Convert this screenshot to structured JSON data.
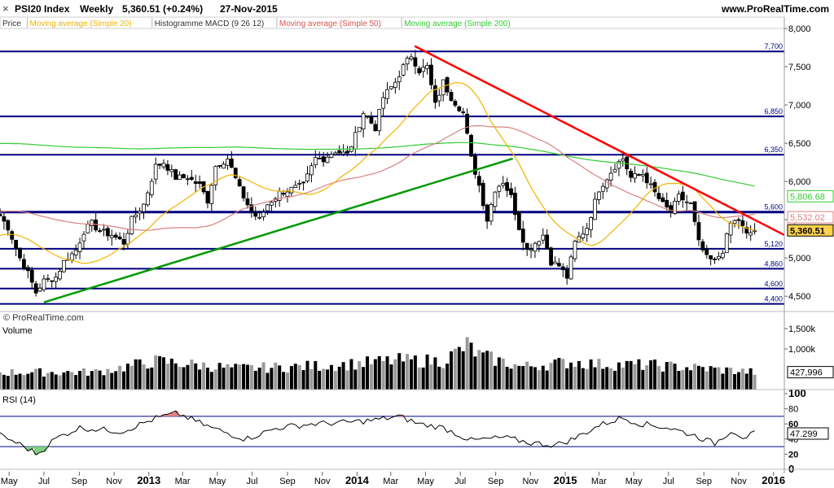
{
  "header": {
    "title": "PSI20 Index",
    "period": "Weekly",
    "last": "5,360.51 (+0.24%)",
    "date": "27-Nov-2015",
    "site": "www.ProRealTime.com",
    "copyright": "© ProRealTime.com",
    "close_icon": "close-icon"
  },
  "legend": [
    {
      "label": "Price",
      "color": "#333333"
    },
    {
      "label": "Moving average (Simple 20)",
      "color": "#f0b400"
    },
    {
      "label": "Histogramme MACD (9 26 12)",
      "color": "#333333"
    },
    {
      "label": "Moving average (Simple 50)",
      "color": "#d9534f"
    },
    {
      "label": "Moving average (Simple 200)",
      "color": "#33cc33"
    }
  ],
  "colors": {
    "sma20": "#f0b400",
    "sma50": "#d98080",
    "sma200": "#33cc33",
    "resistance_trend": "#ff0000",
    "support_trend": "#009900",
    "levels": "#000080",
    "candle_up": "#ffffff",
    "candle_down": "#000000"
  },
  "chart_data": [
    {
      "type": "candlestick",
      "title": "PSI20 Index",
      "y_ticks": [
        "8,000",
        "7,500",
        "7,000",
        "6,500",
        "6,000",
        "5,500",
        "5,000",
        "4,500"
      ],
      "ylim": [
        4300,
        8000
      ],
      "x_ticks": [
        "May",
        "Jul",
        "Sep",
        "Nov",
        "2013",
        "Mar",
        "May",
        "Jul",
        "Sep",
        "Nov",
        "2014",
        "Mar",
        "May",
        "Jul",
        "Sep",
        "Nov",
        "2015",
        "Mar",
        "May",
        "Jul",
        "Sep",
        "Nov",
        "2016"
      ],
      "xlim": [
        "2012-04-15",
        "2016-01-20"
      ],
      "horizontal_levels": [
        {
          "value": 7700,
          "label": "7,700"
        },
        {
          "value": 6850,
          "label": "6,850"
        },
        {
          "value": 6350,
          "label": "6,350"
        },
        {
          "value": 5600,
          "label": "5,600"
        },
        {
          "value": 5120,
          "label": "5,120"
        },
        {
          "value": 4860,
          "label": "4,860"
        },
        {
          "value": 4600,
          "label": "4,600"
        },
        {
          "value": 4400,
          "label": "4,400"
        }
      ],
      "trend_lines": [
        {
          "name": "resistance",
          "points": [
            [
              "2014-04-12",
              7770
            ],
            [
              "2016-01-20",
              5300
            ]
          ]
        },
        {
          "name": "support",
          "points": [
            [
              "2012-07-01",
              4420
            ],
            [
              "2014-10-01",
              6300
            ]
          ]
        }
      ],
      "value_labels": [
        {
          "series": "Moving average (Simple 200)",
          "value": "5,806.68"
        },
        {
          "series": "Moving average (Simple 50)",
          "value": "5,532.02"
        },
        {
          "series": "Price",
          "value": "5,360.51"
        }
      ],
      "close_anchors": [
        [
          "2012-04-15",
          5550
        ],
        [
          "2012-04-29",
          5400
        ],
        [
          "2012-05-20",
          5000
        ],
        [
          "2012-06-03",
          4800
        ],
        [
          "2012-06-17",
          4550
        ],
        [
          "2012-07-01",
          4700
        ],
        [
          "2012-07-22",
          4750
        ],
        [
          "2012-08-05",
          4950
        ],
        [
          "2012-08-26",
          5100
        ],
        [
          "2012-09-09",
          5350
        ],
        [
          "2012-09-23",
          5450
        ],
        [
          "2012-10-07",
          5350
        ],
        [
          "2012-10-28",
          5300
        ],
        [
          "2012-11-18",
          5200
        ],
        [
          "2012-12-02",
          5500
        ],
        [
          "2012-12-23",
          5700
        ],
        [
          "2013-01-13",
          6200
        ],
        [
          "2013-01-27",
          6250
        ],
        [
          "2013-02-17",
          6050
        ],
        [
          "2013-03-10",
          6050
        ],
        [
          "2013-03-31",
          5950
        ],
        [
          "2013-04-14",
          5750
        ],
        [
          "2013-04-28",
          6200
        ],
        [
          "2013-05-19",
          6300
        ],
        [
          "2013-06-09",
          5900
        ],
        [
          "2013-06-30",
          5600
        ],
        [
          "2013-07-14",
          5500
        ],
        [
          "2013-07-28",
          5700
        ],
        [
          "2013-08-18",
          5850
        ],
        [
          "2013-09-08",
          5900
        ],
        [
          "2013-09-29",
          5950
        ],
        [
          "2013-10-20",
          6300
        ],
        [
          "2013-11-03",
          6300
        ],
        [
          "2013-11-24",
          6400
        ],
        [
          "2013-12-15",
          6350
        ],
        [
          "2013-12-29",
          6600
        ],
        [
          "2014-01-12",
          6900
        ],
        [
          "2014-02-02",
          6700
        ],
        [
          "2014-02-16",
          7100
        ],
        [
          "2014-03-09",
          7300
        ],
        [
          "2014-03-23",
          7500
        ],
        [
          "2014-04-06",
          7650
        ],
        [
          "2014-04-20",
          7450
        ],
        [
          "2014-05-04",
          7500
        ],
        [
          "2014-05-18",
          7000
        ],
        [
          "2014-06-01",
          7300
        ],
        [
          "2014-06-15",
          7100
        ],
        [
          "2014-07-06",
          6900
        ],
        [
          "2014-07-20",
          6300
        ],
        [
          "2014-08-03",
          5950
        ],
        [
          "2014-08-17",
          5500
        ],
        [
          "2014-08-31",
          5900
        ],
        [
          "2014-09-14",
          6000
        ],
        [
          "2014-09-28",
          5800
        ],
        [
          "2014-10-12",
          5400
        ],
        [
          "2014-10-26",
          5100
        ],
        [
          "2014-11-09",
          5200
        ],
        [
          "2014-11-23",
          5300
        ],
        [
          "2014-12-07",
          4950
        ],
        [
          "2014-12-21",
          4900
        ],
        [
          "2015-01-04",
          4750
        ],
        [
          "2015-01-18",
          5200
        ],
        [
          "2015-02-08",
          5400
        ],
        [
          "2015-03-01",
          5900
        ],
        [
          "2015-03-15",
          6050
        ],
        [
          "2015-03-29",
          6200
        ],
        [
          "2015-04-12",
          6300
        ],
        [
          "2015-04-26",
          6050
        ],
        [
          "2015-05-17",
          6100
        ],
        [
          "2015-06-07",
          5850
        ],
        [
          "2015-06-21",
          5700
        ],
        [
          "2015-07-05",
          5600
        ],
        [
          "2015-07-19",
          5800
        ],
        [
          "2015-08-09",
          5700
        ],
        [
          "2015-08-23",
          5200
        ],
        [
          "2015-09-06",
          5000
        ],
        [
          "2015-09-20",
          4950
        ],
        [
          "2015-10-04",
          5100
        ],
        [
          "2015-10-18",
          5450
        ],
        [
          "2015-11-01",
          5500
        ],
        [
          "2015-11-15",
          5300
        ],
        [
          "2015-11-29",
          5360.51
        ]
      ]
    },
    {
      "type": "bar",
      "title": "Volume",
      "y_ticks": [
        "1,500k",
        "1,000k"
      ],
      "ylim": [
        0,
        1600000
      ],
      "last_value": "427,996",
      "volume_anchors": [
        [
          "2012-04-15",
          420000
        ],
        [
          "2012-10-01",
          430000
        ],
        [
          "2013-01-15",
          700000
        ],
        [
          "2013-06-01",
          520000
        ],
        [
          "2013-09-15",
          560000
        ],
        [
          "2013-12-15",
          620000
        ],
        [
          "2014-03-15",
          720000
        ],
        [
          "2014-06-01",
          700000
        ],
        [
          "2014-07-15",
          1100000
        ],
        [
          "2014-08-01",
          850000
        ],
        [
          "2014-10-15",
          560000
        ],
        [
          "2015-01-15",
          680000
        ],
        [
          "2015-03-01",
          620000
        ],
        [
          "2015-06-01",
          600000
        ],
        [
          "2015-09-01",
          520000
        ],
        [
          "2015-11-29",
          427996
        ]
      ]
    },
    {
      "type": "line",
      "title": "RSI (14)",
      "y_ticks": [
        "100",
        "80",
        "60",
        "40",
        "20",
        "0"
      ],
      "ylim": [
        0,
        100
      ],
      "bands": [
        30,
        70
      ],
      "last_value": "47.299",
      "rsi_anchors": [
        [
          "2012-04-15",
          45
        ],
        [
          "2012-05-15",
          35
        ],
        [
          "2012-06-20",
          20
        ],
        [
          "2012-07-20",
          40
        ],
        [
          "2012-09-01",
          55
        ],
        [
          "2012-11-15",
          50
        ],
        [
          "2013-01-15",
          68
        ],
        [
          "2013-02-20",
          74
        ],
        [
          "2013-04-20",
          55
        ],
        [
          "2013-06-20",
          40
        ],
        [
          "2013-08-15",
          55
        ],
        [
          "2013-10-15",
          60
        ],
        [
          "2013-12-15",
          62
        ],
        [
          "2014-02-01",
          65
        ],
        [
          "2014-03-15",
          70
        ],
        [
          "2014-04-20",
          60
        ],
        [
          "2014-06-01",
          55
        ],
        [
          "2014-07-20",
          38
        ],
        [
          "2014-09-15",
          42
        ],
        [
          "2014-11-01",
          35
        ],
        [
          "2014-12-15",
          32
        ],
        [
          "2015-01-15",
          40
        ],
        [
          "2015-03-01",
          58
        ],
        [
          "2015-04-10",
          68
        ],
        [
          "2015-05-15",
          60
        ],
        [
          "2015-07-01",
          55
        ],
        [
          "2015-08-15",
          45
        ],
        [
          "2015-09-20",
          34
        ],
        [
          "2015-10-20",
          52
        ],
        [
          "2015-11-10",
          42
        ],
        [
          "2015-11-29",
          47.3
        ]
      ]
    }
  ]
}
